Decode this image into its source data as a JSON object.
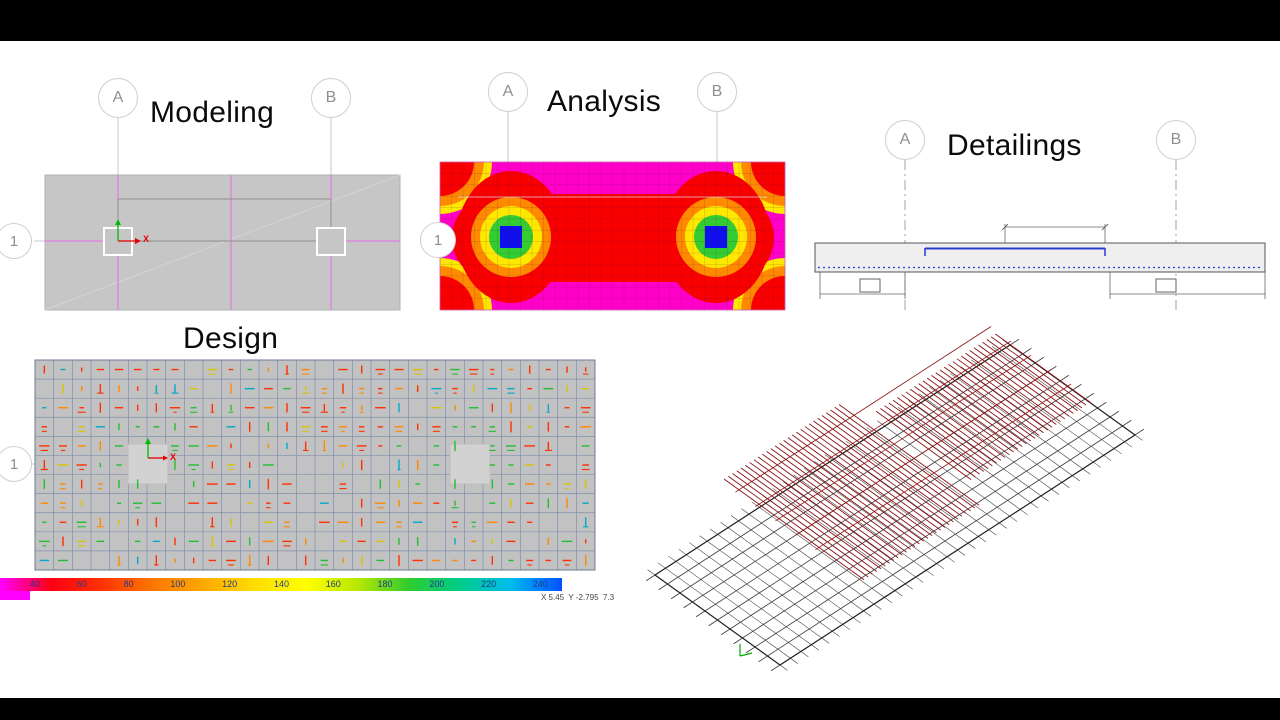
{
  "stages": {
    "modeling": {
      "title": "Modeling",
      "bubble_a": "A",
      "bubble_b": "B",
      "row": "1",
      "axis_x": "X"
    },
    "analysis": {
      "title": "Analysis",
      "bubble_a": "A",
      "bubble_b": "B",
      "row": "1"
    },
    "detailings": {
      "title": "Detailings",
      "bubble_a": "A",
      "bubble_b": "B"
    },
    "design": {
      "title": "Design",
      "row": "1",
      "axis_x": "X",
      "coords": "X 5.45  Y -2.795  7.3"
    }
  },
  "legend": {
    "values": [
      "40",
      "60",
      "80",
      "100",
      "120",
      "140",
      "160",
      "180",
      "200",
      "220",
      "240"
    ],
    "colors": [
      "#ff00ff",
      "#ff0012",
      "#ff3300",
      "#ff7700",
      "#ffaa00",
      "#ffdd00",
      "#ffff00",
      "#b8e800",
      "#2fcc2f",
      "#00cc88",
      "#00bbee",
      "#0050ff"
    ]
  },
  "palette": {
    "contour_bg": "#ff00c8",
    "contour_red": "#f80000",
    "contour_orange": "#ff8a00",
    "contour_yellow": "#ffe800",
    "contour_green": "#33cc33",
    "contour_blue": "#1010ee",
    "grid_magenta": "#e66ae6",
    "rebar_blue": "#2a3bd0",
    "rebar_red": "#8a1111"
  }
}
